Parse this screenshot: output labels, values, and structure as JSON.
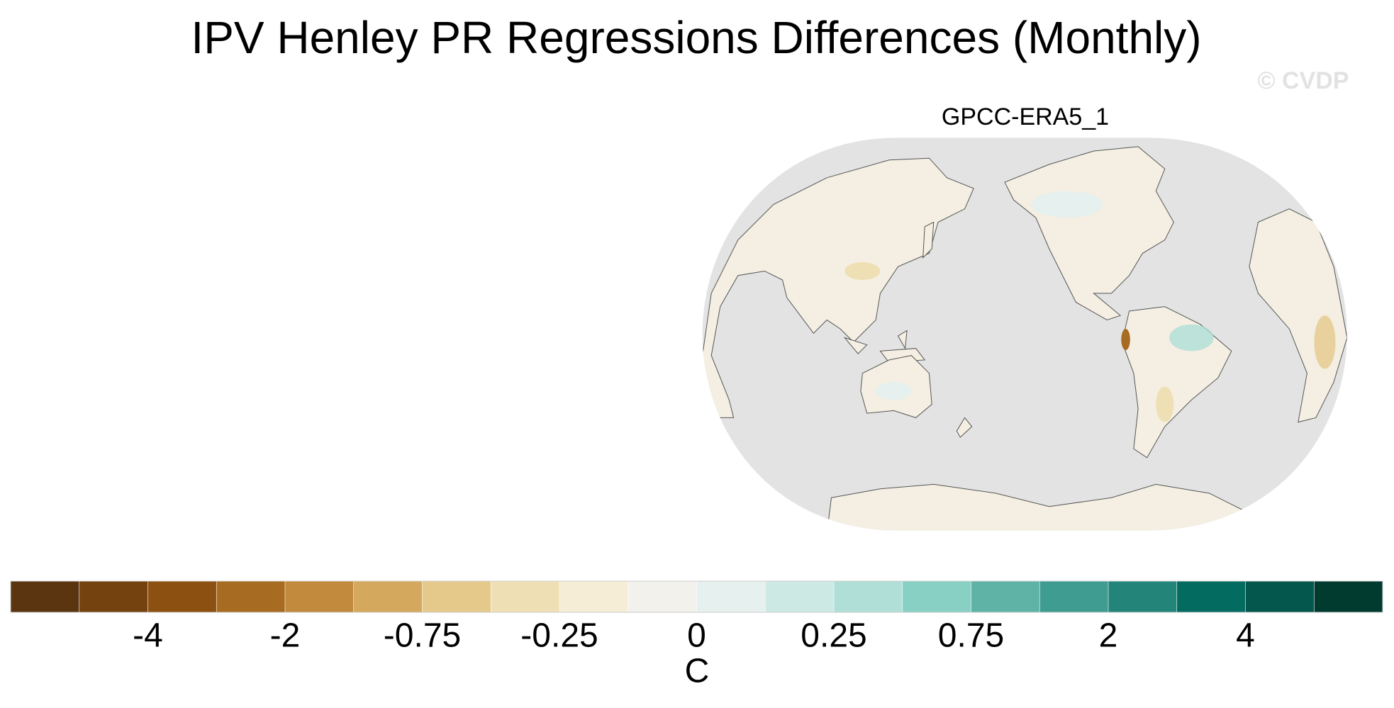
{
  "title": "IPV Henley PR Regressions Differences (Monthly)",
  "watermark": "© CVDP",
  "panel": {
    "title": "GPCC-ERA5_1"
  },
  "colorbar": {
    "colors": [
      "#5a3510",
      "#74420e",
      "#8c5110",
      "#a86b22",
      "#c28a3c",
      "#d4a95e",
      "#e5c98b",
      "#efdfb4",
      "#f5edd5",
      "#f3f1ec",
      "#e6f0ee",
      "#cde9e4",
      "#afdfd7",
      "#88d0c4",
      "#5fb3a6",
      "#3e9c91",
      "#238479",
      "#046b61",
      "#03574c",
      "#013b2f"
    ],
    "ticks": [
      -4,
      -2,
      -0.75,
      -0.25,
      0,
      0.25,
      0.75,
      2,
      4
    ],
    "label": "C"
  }
}
